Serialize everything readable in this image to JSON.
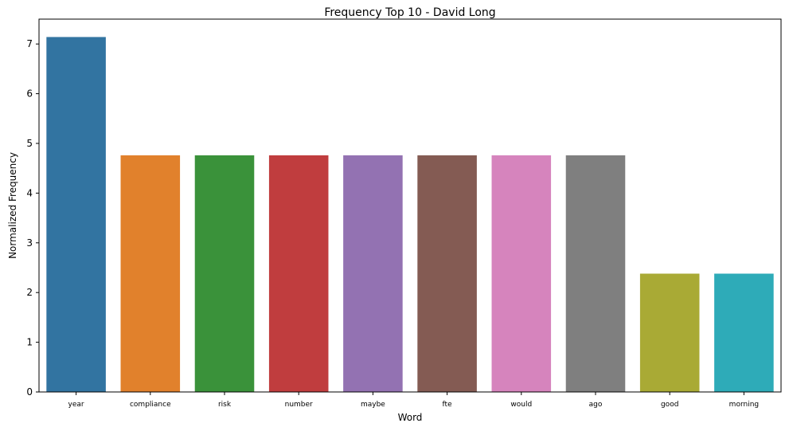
{
  "chart_data": {
    "type": "bar",
    "title": "Frequency Top 10 - David Long",
    "xlabel": "Word",
    "ylabel": "Normalized Frequency",
    "categories": [
      "year",
      "compliance",
      "risk",
      "number",
      "maybe",
      "fte",
      "would",
      "ago",
      "good",
      "morning"
    ],
    "values": [
      7.14,
      4.76,
      4.76,
      4.76,
      4.76,
      4.76,
      4.76,
      4.76,
      2.38,
      2.38
    ],
    "colors": [
      "#3274a1",
      "#e1812c",
      "#3a923a",
      "#c03d3e",
      "#9372b2",
      "#845b53",
      "#d684bd",
      "#7f7f7f",
      "#a9aa35",
      "#2eabb8"
    ],
    "ylim": [
      0,
      7.5
    ],
    "yticks": [
      0,
      1,
      2,
      3,
      4,
      5,
      6,
      7
    ],
    "grid": false,
    "legend": "none"
  }
}
